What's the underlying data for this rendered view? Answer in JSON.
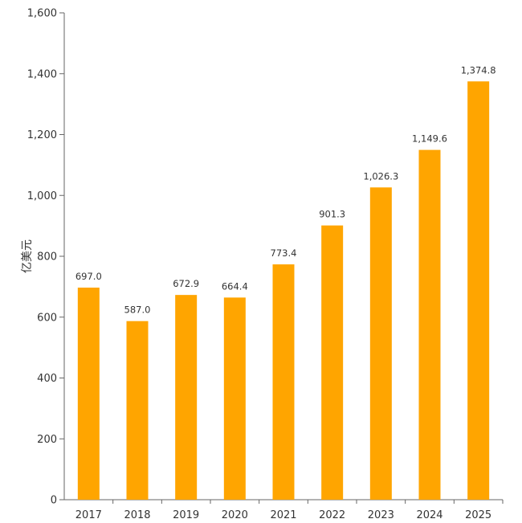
{
  "chart_data": {
    "type": "bar",
    "categories": [
      "2017",
      "2018",
      "2019",
      "2020",
      "2021",
      "2022",
      "2023",
      "2024",
      "2025"
    ],
    "values": [
      697.0,
      587.0,
      672.9,
      664.4,
      773.4,
      901.3,
      1026.3,
      1149.6,
      1374.8
    ],
    "value_labels": [
      "697.0",
      "587.0",
      "672.9",
      "664.4",
      "773.4",
      "901.3",
      "1,026.3",
      "1,149.6",
      "1,374.8"
    ],
    "ylabel": "亿美元",
    "ylim": [
      0,
      1600
    ],
    "yticks": [
      0,
      200,
      400,
      600,
      800,
      1000,
      1200,
      1400,
      1600
    ],
    "ytick_labels": [
      "0",
      "200",
      "400",
      "600",
      "800",
      "1,000",
      "1,200",
      "1,400",
      "1,600"
    ],
    "grid": false,
    "bar_color": "#FFA500"
  }
}
